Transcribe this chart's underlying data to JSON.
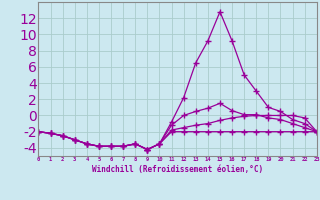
{
  "xlabel": "Windchill (Refroidissement éolien,°C)",
  "x_values": [
    0,
    1,
    2,
    3,
    4,
    5,
    6,
    7,
    8,
    9,
    10,
    11,
    12,
    13,
    14,
    15,
    16,
    17,
    18,
    19,
    20,
    21,
    22,
    23
  ],
  "line1": [
    -2,
    -2.2,
    -2.5,
    -3.0,
    -3.5,
    -3.8,
    -3.8,
    -3.8,
    -3.5,
    -4.2,
    -3.5,
    -0.8,
    2.2,
    6.5,
    9.2,
    12.8,
    9.2,
    5.0,
    3.0,
    1.0,
    0.5,
    -0.5,
    -1.0,
    -2.0
  ],
  "line2": [
    -2,
    -2.2,
    -2.5,
    -3.0,
    -3.5,
    -3.8,
    -3.8,
    -3.8,
    -3.5,
    -4.2,
    -3.5,
    -1.2,
    0.0,
    0.5,
    0.9,
    1.5,
    0.6,
    0.1,
    0.1,
    -0.3,
    -0.5,
    -1.0,
    -1.5,
    -2.0
  ],
  "line3": [
    -2,
    -2.2,
    -2.5,
    -3.0,
    -3.5,
    -3.8,
    -3.8,
    -3.8,
    -3.5,
    -4.2,
    -3.5,
    -1.8,
    -1.5,
    -1.2,
    -1.0,
    -0.6,
    -0.3,
    -0.1,
    0.0,
    0.0,
    0.0,
    0.0,
    -0.3,
    -2.0
  ],
  "line4": [
    -2,
    -2.2,
    -2.5,
    -3.0,
    -3.5,
    -3.8,
    -3.8,
    -3.8,
    -3.5,
    -4.2,
    -3.5,
    -2.0,
    -2.0,
    -2.0,
    -2.0,
    -2.0,
    -2.0,
    -2.0,
    -2.0,
    -2.0,
    -2.0,
    -2.0,
    -2.0,
    -2.0
  ],
  "ylim": [
    -5,
    14
  ],
  "xlim": [
    0,
    23
  ],
  "yticks": [
    -4,
    -2,
    0,
    2,
    4,
    6,
    8,
    10,
    12
  ],
  "xticks": [
    0,
    1,
    2,
    3,
    4,
    5,
    6,
    7,
    8,
    9,
    10,
    11,
    12,
    13,
    14,
    15,
    16,
    17,
    18,
    19,
    20,
    21,
    22,
    23
  ],
  "line_color": "#990099",
  "bg_color": "#cce8f0",
  "grid_color": "#aacccc",
  "marker": "+",
  "marker_size": 4,
  "lw": 0.9
}
